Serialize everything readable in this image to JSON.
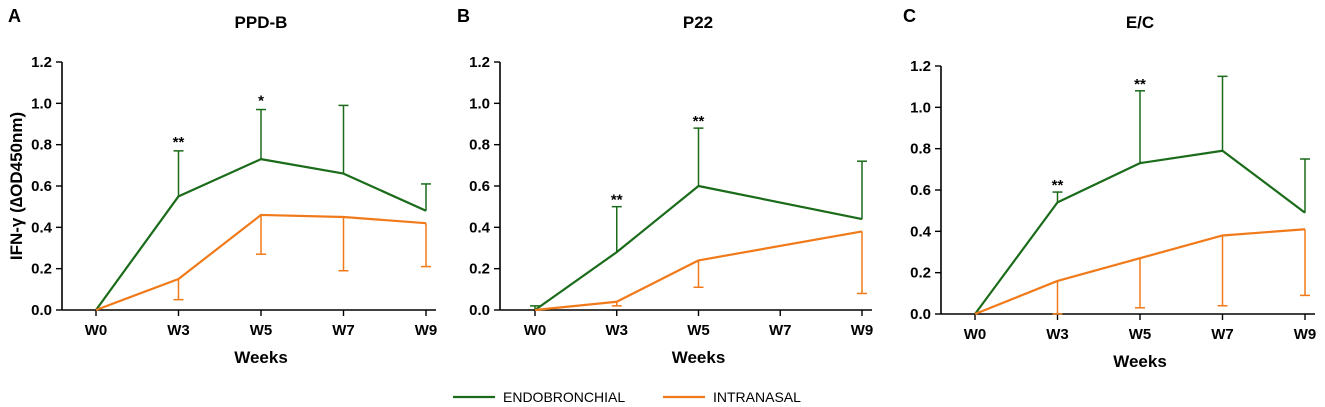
{
  "colors": {
    "endobronchial": "#1a6b1a",
    "intranasal": "#f07a1a",
    "axis": "#000000"
  },
  "legend": [
    {
      "key": "endobronchial",
      "label": "ENDOBRONCHIAL"
    },
    {
      "key": "intranasal",
      "label": "INTRANASAL"
    }
  ],
  "chart_data": [
    {
      "type": "line",
      "panel": "A",
      "title": "PPD-B",
      "xlabel": "Weeks",
      "ylabel": "IFN-γ (∆OD450nm)",
      "categories": [
        "W0",
        "W3",
        "W5",
        "W7",
        "W9"
      ],
      "ylim": [
        0,
        1.2
      ],
      "yticks": [
        "0.0",
        "0.2",
        "0.4",
        "0.6",
        "0.8",
        "1.0",
        "1.2"
      ],
      "series": [
        {
          "key": "endobronchial",
          "name": "ENDOBRONCHIAL",
          "values": [
            0.0,
            0.55,
            0.73,
            0.66,
            0.48
          ],
          "error_upper": [
            0.0,
            0.77,
            0.97,
            0.99,
            0.61
          ]
        },
        {
          "key": "intranasal",
          "name": "INTRANASAL",
          "values": [
            0.0,
            0.15,
            0.46,
            0.45,
            0.42
          ],
          "error_lower": [
            0.0,
            0.05,
            0.27,
            0.19,
            0.21
          ]
        }
      ],
      "annotations": [
        {
          "category": "W3",
          "text": "**",
          "y": 0.78
        },
        {
          "category": "W5",
          "text": "*",
          "y": 0.98
        }
      ]
    },
    {
      "type": "line",
      "panel": "B",
      "title": "P22",
      "xlabel": "Weeks",
      "ylabel": "",
      "categories": [
        "W0",
        "W3",
        "W5",
        "W7",
        "W9"
      ],
      "ylim": [
        0,
        1.2
      ],
      "yticks": [
        "0.0",
        "0.2",
        "0.4",
        "0.6",
        "0.8",
        "1.0",
        "1.2"
      ],
      "series": [
        {
          "key": "endobronchial",
          "name": "ENDOBRONCHIAL",
          "x": [
            "W0",
            "W3",
            "W5",
            "W9"
          ],
          "values": [
            0.0,
            0.28,
            0.6,
            0.44
          ],
          "error_upper": [
            0.02,
            0.5,
            0.88,
            0.72
          ]
        },
        {
          "key": "intranasal",
          "name": "INTRANASAL",
          "x": [
            "W0",
            "W3",
            "W5",
            "W9"
          ],
          "values": [
            0.0,
            0.04,
            0.24,
            0.38
          ],
          "error_lower": [
            0.0,
            0.02,
            0.11,
            0.08
          ]
        }
      ],
      "annotations": [
        {
          "category": "W3",
          "text": "**",
          "y": 0.5
        },
        {
          "category": "W5",
          "text": "**",
          "y": 0.88
        }
      ]
    },
    {
      "type": "line",
      "panel": "C",
      "title": "E/C",
      "xlabel": "Weeks",
      "ylabel": "",
      "categories": [
        "W0",
        "W3",
        "W5",
        "W7",
        "W9"
      ],
      "ylim": [
        0,
        1.2
      ],
      "yticks": [
        "0.0",
        "0.2",
        "0.4",
        "0.6",
        "0.8",
        "1.0",
        "1.2"
      ],
      "series": [
        {
          "key": "endobronchial",
          "name": "ENDOBRONCHIAL",
          "values": [
            0.0,
            0.54,
            0.73,
            0.79,
            0.49
          ],
          "error_upper": [
            0.0,
            0.59,
            1.08,
            1.15,
            0.75
          ]
        },
        {
          "key": "intranasal",
          "name": "INTRANASAL",
          "values": [
            0.0,
            0.16,
            0.27,
            0.38,
            0.41
          ],
          "error_lower": [
            0.0,
            0.0,
            0.03,
            0.04,
            0.09
          ]
        }
      ],
      "annotations": [
        {
          "category": "W3",
          "text": "**",
          "y": 0.59
        },
        {
          "category": "W5",
          "text": "**",
          "y": 1.08
        }
      ]
    }
  ]
}
